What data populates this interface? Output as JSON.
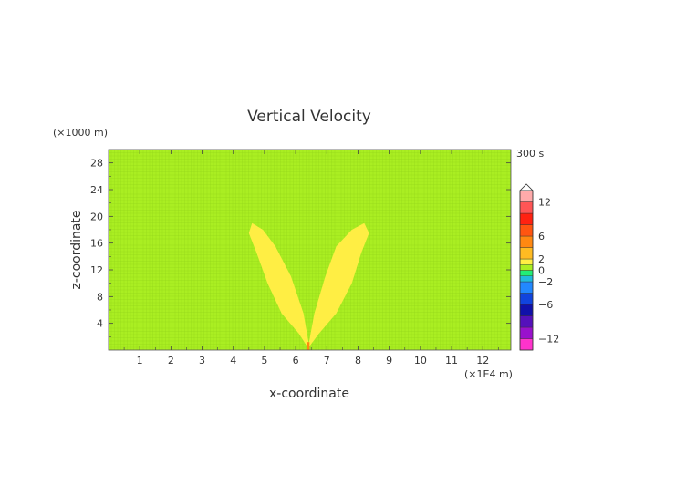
{
  "chart_data": {
    "type": "heatmap",
    "title": "Vertical Velocity",
    "xlabel": "x-coordinate",
    "ylabel": "z-coordinate",
    "x_unit": "(×1E4 m)",
    "y_unit": "(×1000 m)",
    "time_label": "300 s",
    "xlim": [
      0,
      12.9
    ],
    "ylim": [
      0,
      30
    ],
    "x_ticks": [
      "1",
      "2",
      "3",
      "4",
      "5",
      "6",
      "7",
      "8",
      "9",
      "10",
      "11",
      "12"
    ],
    "y_ticks": [
      "4",
      "8",
      "12",
      "16",
      "20",
      "24",
      "28"
    ],
    "background_value": 0,
    "features": [
      {
        "name": "left lobe",
        "value_range": [
          0,
          2
        ],
        "outline": [
          [
            6.4,
            0.3
          ],
          [
            6.1,
            2.5
          ],
          [
            5.55,
            5.5
          ],
          [
            5.1,
            10
          ],
          [
            4.75,
            14.5
          ],
          [
            4.5,
            17.5
          ],
          [
            4.6,
            19
          ],
          [
            4.95,
            18
          ],
          [
            5.35,
            15.5
          ],
          [
            5.85,
            11
          ],
          [
            6.25,
            5.5
          ],
          [
            6.42,
            1
          ]
        ]
      },
      {
        "name": "right lobe",
        "value_range": [
          0,
          2
        ],
        "outline": [
          [
            6.4,
            0.3
          ],
          [
            6.75,
            2.5
          ],
          [
            7.3,
            5.5
          ],
          [
            7.8,
            10
          ],
          [
            8.1,
            14.5
          ],
          [
            8.35,
            17.5
          ],
          [
            8.2,
            19
          ],
          [
            7.8,
            18
          ],
          [
            7.3,
            15.5
          ],
          [
            6.95,
            11
          ],
          [
            6.6,
            5.5
          ],
          [
            6.42,
            1
          ]
        ]
      },
      {
        "name": "source cell",
        "x": 6.4,
        "z_range": [
          0,
          1.2
        ],
        "value_range": [
          4,
          6
        ]
      }
    ],
    "colorbar": {
      "labels": [
        "12",
        "6",
        "2",
        "0",
        "-2",
        "-6",
        "-12"
      ],
      "min": -14,
      "max": 14,
      "bands": [
        {
          "from": -14,
          "to": -12,
          "color": "#ff33cc"
        },
        {
          "from": -12,
          "to": -10,
          "color": "#9911cc"
        },
        {
          "from": -10,
          "to": -8,
          "color": "#5511bb"
        },
        {
          "from": -8,
          "to": -6,
          "color": "#1111aa"
        },
        {
          "from": -6,
          "to": -4,
          "color": "#1144dd"
        },
        {
          "from": -4,
          "to": -2,
          "color": "#2288ff"
        },
        {
          "from": -2,
          "to": -1,
          "color": "#22bbdd"
        },
        {
          "from": -1,
          "to": 0,
          "color": "#22ee77"
        },
        {
          "from": 0,
          "to": 1,
          "color": "#aaee22"
        },
        {
          "from": 1,
          "to": 2,
          "color": "#ffee44"
        },
        {
          "from": 2,
          "to": 4,
          "color": "#ffbb22"
        },
        {
          "from": 4,
          "to": 6,
          "color": "#ff8811"
        },
        {
          "from": 6,
          "to": 8,
          "color": "#ff5511"
        },
        {
          "from": 8,
          "to": 10,
          "color": "#ff2211"
        },
        {
          "from": 10,
          "to": 12,
          "color": "#ff5555"
        },
        {
          "from": 12,
          "to": 14,
          "color": "#ffaaaa"
        }
      ]
    }
  }
}
